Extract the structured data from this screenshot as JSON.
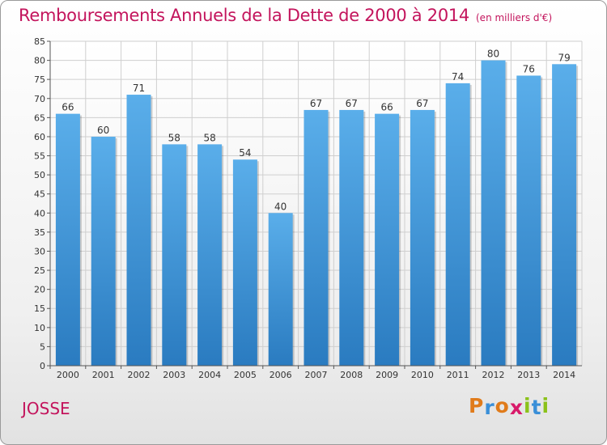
{
  "chart_data": {
    "type": "bar",
    "title": "Remboursements Annuels de la Dette de 2000 à 2014",
    "unit_note": "(en milliers d'€)",
    "xlabel": "",
    "ylabel": "",
    "categories": [
      "2000",
      "2001",
      "2002",
      "2003",
      "2004",
      "2005",
      "2006",
      "2007",
      "2008",
      "2009",
      "2010",
      "2011",
      "2012",
      "2013",
      "2014"
    ],
    "values": [
      66,
      60,
      71,
      58,
      58,
      54,
      40,
      67,
      67,
      66,
      67,
      74,
      80,
      76,
      79
    ],
    "ylim": [
      0,
      85
    ],
    "yticks": [
      0,
      5,
      10,
      15,
      20,
      25,
      30,
      35,
      40,
      45,
      50,
      55,
      60,
      65,
      70,
      75,
      80,
      85
    ],
    "grid": true,
    "bar_color": "#4a9de0"
  },
  "commune": "JOSSE",
  "logo": {
    "letters": [
      "P",
      "r",
      "o",
      "x",
      "i",
      "t",
      "i"
    ],
    "colors": [
      "#e07b1a",
      "#3a8fd8",
      "#e07b1a",
      "#d81a6a",
      "#8bc21a",
      "#3a8fd8",
      "#8bc21a"
    ]
  },
  "colors": {
    "title": "#c3145c",
    "grid": "#cfcfcf",
    "axis": "#555555"
  }
}
